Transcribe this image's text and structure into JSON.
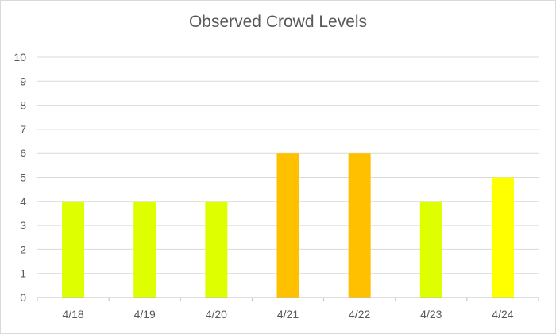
{
  "chart_data": {
    "type": "bar",
    "title": "Observed Crowd Levels",
    "xlabel": "",
    "ylabel": "",
    "categories": [
      "4/18",
      "4/19",
      "4/20",
      "4/21",
      "4/22",
      "4/23",
      "4/24"
    ],
    "values": [
      4,
      4,
      4,
      6,
      6,
      4,
      5
    ],
    "bar_colors": [
      "#DDFF00",
      "#DDFF00",
      "#DDFF00",
      "#FFC000",
      "#FFC000",
      "#DDFF00",
      "#FFFF00"
    ],
    "ylim": [
      0,
      10
    ],
    "yticks": [
      "0",
      "1",
      "2",
      "3",
      "4",
      "5",
      "6",
      "7",
      "8",
      "9",
      "10"
    ],
    "grid": true,
    "legend": "none",
    "colors": {
      "gridline": "#d9d9d9",
      "axis": "#bfbfbf",
      "text": "#595959"
    }
  }
}
